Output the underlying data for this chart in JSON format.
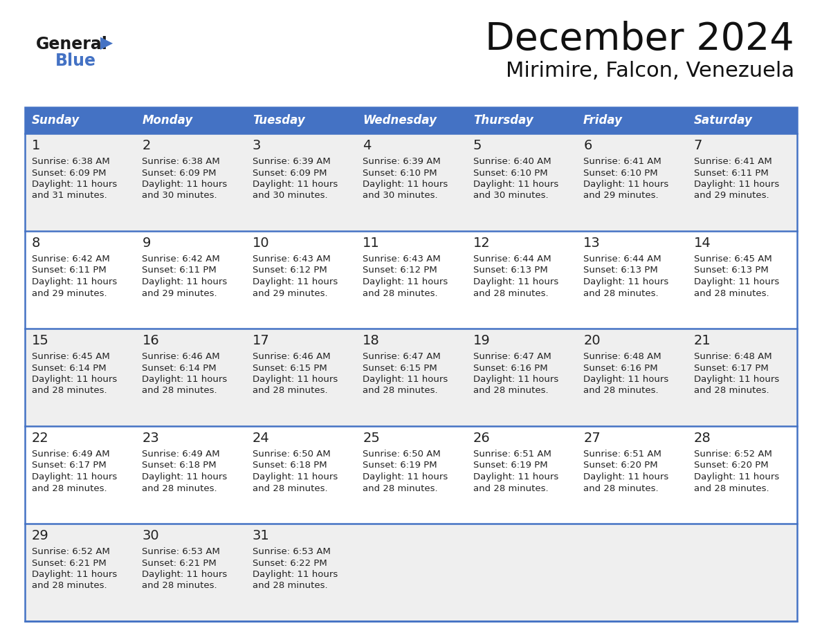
{
  "title": "December 2024",
  "subtitle": "Mirimire, Falcon, Venezuela",
  "header_color": "#4472C4",
  "header_text_color": "#FFFFFF",
  "day_names": [
    "Sunday",
    "Monday",
    "Tuesday",
    "Wednesday",
    "Thursday",
    "Friday",
    "Saturday"
  ],
  "bg_color": "#FFFFFF",
  "cell_bg_row0": "#EFEFEF",
  "cell_bg_row1": "#FFFFFF",
  "cell_bg_row2": "#EFEFEF",
  "cell_bg_row3": "#FFFFFF",
  "cell_bg_row4": "#EFEFEF",
  "border_color": "#4472C4",
  "text_color": "#222222",
  "logo_general_color": "#1a1a1a",
  "logo_blue_color": "#4472C4",
  "days": [
    {
      "day": 1,
      "col": 0,
      "row": 0,
      "sunrise": "6:38 AM",
      "sunset": "6:09 PM",
      "daylight_line1": "Daylight: 11 hours",
      "daylight_line2": "and 31 minutes."
    },
    {
      "day": 2,
      "col": 1,
      "row": 0,
      "sunrise": "6:38 AM",
      "sunset": "6:09 PM",
      "daylight_line1": "Daylight: 11 hours",
      "daylight_line2": "and 30 minutes."
    },
    {
      "day": 3,
      "col": 2,
      "row": 0,
      "sunrise": "6:39 AM",
      "sunset": "6:09 PM",
      "daylight_line1": "Daylight: 11 hours",
      "daylight_line2": "and 30 minutes."
    },
    {
      "day": 4,
      "col": 3,
      "row": 0,
      "sunrise": "6:39 AM",
      "sunset": "6:10 PM",
      "daylight_line1": "Daylight: 11 hours",
      "daylight_line2": "and 30 minutes."
    },
    {
      "day": 5,
      "col": 4,
      "row": 0,
      "sunrise": "6:40 AM",
      "sunset": "6:10 PM",
      "daylight_line1": "Daylight: 11 hours",
      "daylight_line2": "and 30 minutes."
    },
    {
      "day": 6,
      "col": 5,
      "row": 0,
      "sunrise": "6:41 AM",
      "sunset": "6:10 PM",
      "daylight_line1": "Daylight: 11 hours",
      "daylight_line2": "and 29 minutes."
    },
    {
      "day": 7,
      "col": 6,
      "row": 0,
      "sunrise": "6:41 AM",
      "sunset": "6:11 PM",
      "daylight_line1": "Daylight: 11 hours",
      "daylight_line2": "and 29 minutes."
    },
    {
      "day": 8,
      "col": 0,
      "row": 1,
      "sunrise": "6:42 AM",
      "sunset": "6:11 PM",
      "daylight_line1": "Daylight: 11 hours",
      "daylight_line2": "and 29 minutes."
    },
    {
      "day": 9,
      "col": 1,
      "row": 1,
      "sunrise": "6:42 AM",
      "sunset": "6:11 PM",
      "daylight_line1": "Daylight: 11 hours",
      "daylight_line2": "and 29 minutes."
    },
    {
      "day": 10,
      "col": 2,
      "row": 1,
      "sunrise": "6:43 AM",
      "sunset": "6:12 PM",
      "daylight_line1": "Daylight: 11 hours",
      "daylight_line2": "and 29 minutes."
    },
    {
      "day": 11,
      "col": 3,
      "row": 1,
      "sunrise": "6:43 AM",
      "sunset": "6:12 PM",
      "daylight_line1": "Daylight: 11 hours",
      "daylight_line2": "and 28 minutes."
    },
    {
      "day": 12,
      "col": 4,
      "row": 1,
      "sunrise": "6:44 AM",
      "sunset": "6:13 PM",
      "daylight_line1": "Daylight: 11 hours",
      "daylight_line2": "and 28 minutes."
    },
    {
      "day": 13,
      "col": 5,
      "row": 1,
      "sunrise": "6:44 AM",
      "sunset": "6:13 PM",
      "daylight_line1": "Daylight: 11 hours",
      "daylight_line2": "and 28 minutes."
    },
    {
      "day": 14,
      "col": 6,
      "row": 1,
      "sunrise": "6:45 AM",
      "sunset": "6:13 PM",
      "daylight_line1": "Daylight: 11 hours",
      "daylight_line2": "and 28 minutes."
    },
    {
      "day": 15,
      "col": 0,
      "row": 2,
      "sunrise": "6:45 AM",
      "sunset": "6:14 PM",
      "daylight_line1": "Daylight: 11 hours",
      "daylight_line2": "and 28 minutes."
    },
    {
      "day": 16,
      "col": 1,
      "row": 2,
      "sunrise": "6:46 AM",
      "sunset": "6:14 PM",
      "daylight_line1": "Daylight: 11 hours",
      "daylight_line2": "and 28 minutes."
    },
    {
      "day": 17,
      "col": 2,
      "row": 2,
      "sunrise": "6:46 AM",
      "sunset": "6:15 PM",
      "daylight_line1": "Daylight: 11 hours",
      "daylight_line2": "and 28 minutes."
    },
    {
      "day": 18,
      "col": 3,
      "row": 2,
      "sunrise": "6:47 AM",
      "sunset": "6:15 PM",
      "daylight_line1": "Daylight: 11 hours",
      "daylight_line2": "and 28 minutes."
    },
    {
      "day": 19,
      "col": 4,
      "row": 2,
      "sunrise": "6:47 AM",
      "sunset": "6:16 PM",
      "daylight_line1": "Daylight: 11 hours",
      "daylight_line2": "and 28 minutes."
    },
    {
      "day": 20,
      "col": 5,
      "row": 2,
      "sunrise": "6:48 AM",
      "sunset": "6:16 PM",
      "daylight_line1": "Daylight: 11 hours",
      "daylight_line2": "and 28 minutes."
    },
    {
      "day": 21,
      "col": 6,
      "row": 2,
      "sunrise": "6:48 AM",
      "sunset": "6:17 PM",
      "daylight_line1": "Daylight: 11 hours",
      "daylight_line2": "and 28 minutes."
    },
    {
      "day": 22,
      "col": 0,
      "row": 3,
      "sunrise": "6:49 AM",
      "sunset": "6:17 PM",
      "daylight_line1": "Daylight: 11 hours",
      "daylight_line2": "and 28 minutes."
    },
    {
      "day": 23,
      "col": 1,
      "row": 3,
      "sunrise": "6:49 AM",
      "sunset": "6:18 PM",
      "daylight_line1": "Daylight: 11 hours",
      "daylight_line2": "and 28 minutes."
    },
    {
      "day": 24,
      "col": 2,
      "row": 3,
      "sunrise": "6:50 AM",
      "sunset": "6:18 PM",
      "daylight_line1": "Daylight: 11 hours",
      "daylight_line2": "and 28 minutes."
    },
    {
      "day": 25,
      "col": 3,
      "row": 3,
      "sunrise": "6:50 AM",
      "sunset": "6:19 PM",
      "daylight_line1": "Daylight: 11 hours",
      "daylight_line2": "and 28 minutes."
    },
    {
      "day": 26,
      "col": 4,
      "row": 3,
      "sunrise": "6:51 AM",
      "sunset": "6:19 PM",
      "daylight_line1": "Daylight: 11 hours",
      "daylight_line2": "and 28 minutes."
    },
    {
      "day": 27,
      "col": 5,
      "row": 3,
      "sunrise": "6:51 AM",
      "sunset": "6:20 PM",
      "daylight_line1": "Daylight: 11 hours",
      "daylight_line2": "and 28 minutes."
    },
    {
      "day": 28,
      "col": 6,
      "row": 3,
      "sunrise": "6:52 AM",
      "sunset": "6:20 PM",
      "daylight_line1": "Daylight: 11 hours",
      "daylight_line2": "and 28 minutes."
    },
    {
      "day": 29,
      "col": 0,
      "row": 4,
      "sunrise": "6:52 AM",
      "sunset": "6:21 PM",
      "daylight_line1": "Daylight: 11 hours",
      "daylight_line2": "and 28 minutes."
    },
    {
      "day": 30,
      "col": 1,
      "row": 4,
      "sunrise": "6:53 AM",
      "sunset": "6:21 PM",
      "daylight_line1": "Daylight: 11 hours",
      "daylight_line2": "and 28 minutes."
    },
    {
      "day": 31,
      "col": 2,
      "row": 4,
      "sunrise": "6:53 AM",
      "sunset": "6:22 PM",
      "daylight_line1": "Daylight: 11 hours",
      "daylight_line2": "and 28 minutes."
    }
  ]
}
